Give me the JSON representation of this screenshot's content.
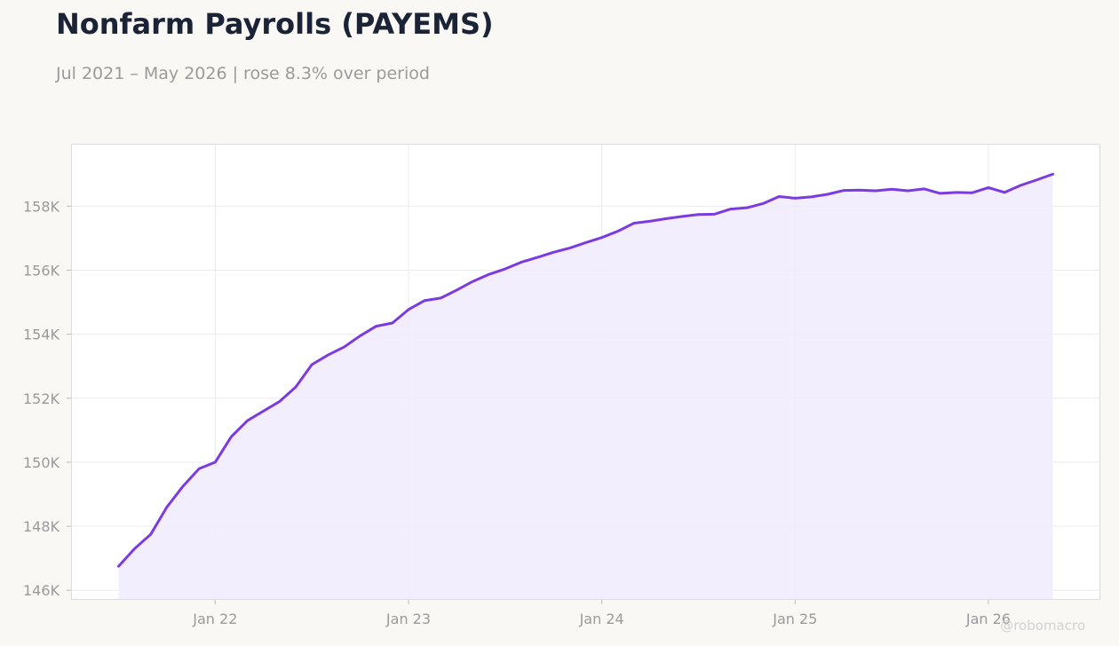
{
  "header": {
    "title": "Nonfarm Payrolls (PAYEMS)",
    "subtitle": "Jul 2021 – May 2026 | rose 8.3% over period"
  },
  "watermark": "@robomacro",
  "colors": {
    "line": "#7b3be3",
    "fill": "#f1ecfd",
    "grid": "#ececec",
    "frame": "#dddddd",
    "tick_text": "#9a9a9a"
  },
  "chart_data": {
    "type": "area",
    "x_unit": "month",
    "x_start": "2021-07",
    "x_end": "2026-05",
    "ylim": [
      145700,
      159950
    ],
    "y_ticks": [
      146000,
      148000,
      150000,
      152000,
      154000,
      156000,
      158000
    ],
    "y_tick_labels": [
      "146K",
      "148K",
      "150K",
      "152K",
      "154K",
      "156K",
      "158K"
    ],
    "x_ticks": [
      "2022-01",
      "2023-01",
      "2024-01",
      "2025-01",
      "2026-01"
    ],
    "x_tick_labels": [
      "Jan 22",
      "Jan 23",
      "Jan 24",
      "Jan 25",
      "Jan 26"
    ],
    "grid": true,
    "legend": "none",
    "series": [
      {
        "x": [
          "2021-07",
          "2021-08",
          "2021-09",
          "2021-10",
          "2021-11",
          "2021-12",
          "2022-01",
          "2022-02",
          "2022-03",
          "2022-04",
          "2022-05",
          "2022-06",
          "2022-07",
          "2022-08",
          "2022-09",
          "2022-10",
          "2022-11",
          "2022-12",
          "2023-01",
          "2023-02",
          "2023-03",
          "2023-04",
          "2023-05",
          "2023-06",
          "2023-07",
          "2023-08",
          "2023-09",
          "2023-10",
          "2023-11",
          "2023-12",
          "2024-01",
          "2024-02",
          "2024-03",
          "2024-04",
          "2024-05",
          "2024-06",
          "2024-07",
          "2024-08",
          "2024-09",
          "2024-10",
          "2024-11",
          "2024-12",
          "2025-01",
          "2025-02",
          "2025-03",
          "2025-04",
          "2025-05",
          "2025-06",
          "2025-07",
          "2025-08",
          "2025-09",
          "2025-10",
          "2025-11",
          "2025-12",
          "2026-01",
          "2026-02",
          "2026-03",
          "2026-04",
          "2026-05"
        ],
        "values": [
          146750,
          147300,
          147750,
          148600,
          149250,
          149800,
          150000,
          150800,
          151300,
          151600,
          151900,
          152350,
          153050,
          153350,
          153600,
          153950,
          154250,
          154350,
          154770,
          155050,
          155130,
          155380,
          155650,
          155870,
          156040,
          156250,
          156400,
          156560,
          156690,
          156860,
          157020,
          157220,
          157470,
          157530,
          157610,
          157680,
          157740,
          157750,
          157910,
          157950,
          158080,
          158300,
          158250,
          158290,
          158370,
          158490,
          158500,
          158480,
          158530,
          158480,
          158540,
          158400,
          158430,
          158420,
          158580,
          158430,
          158650,
          158820,
          159000
        ]
      }
    ]
  }
}
